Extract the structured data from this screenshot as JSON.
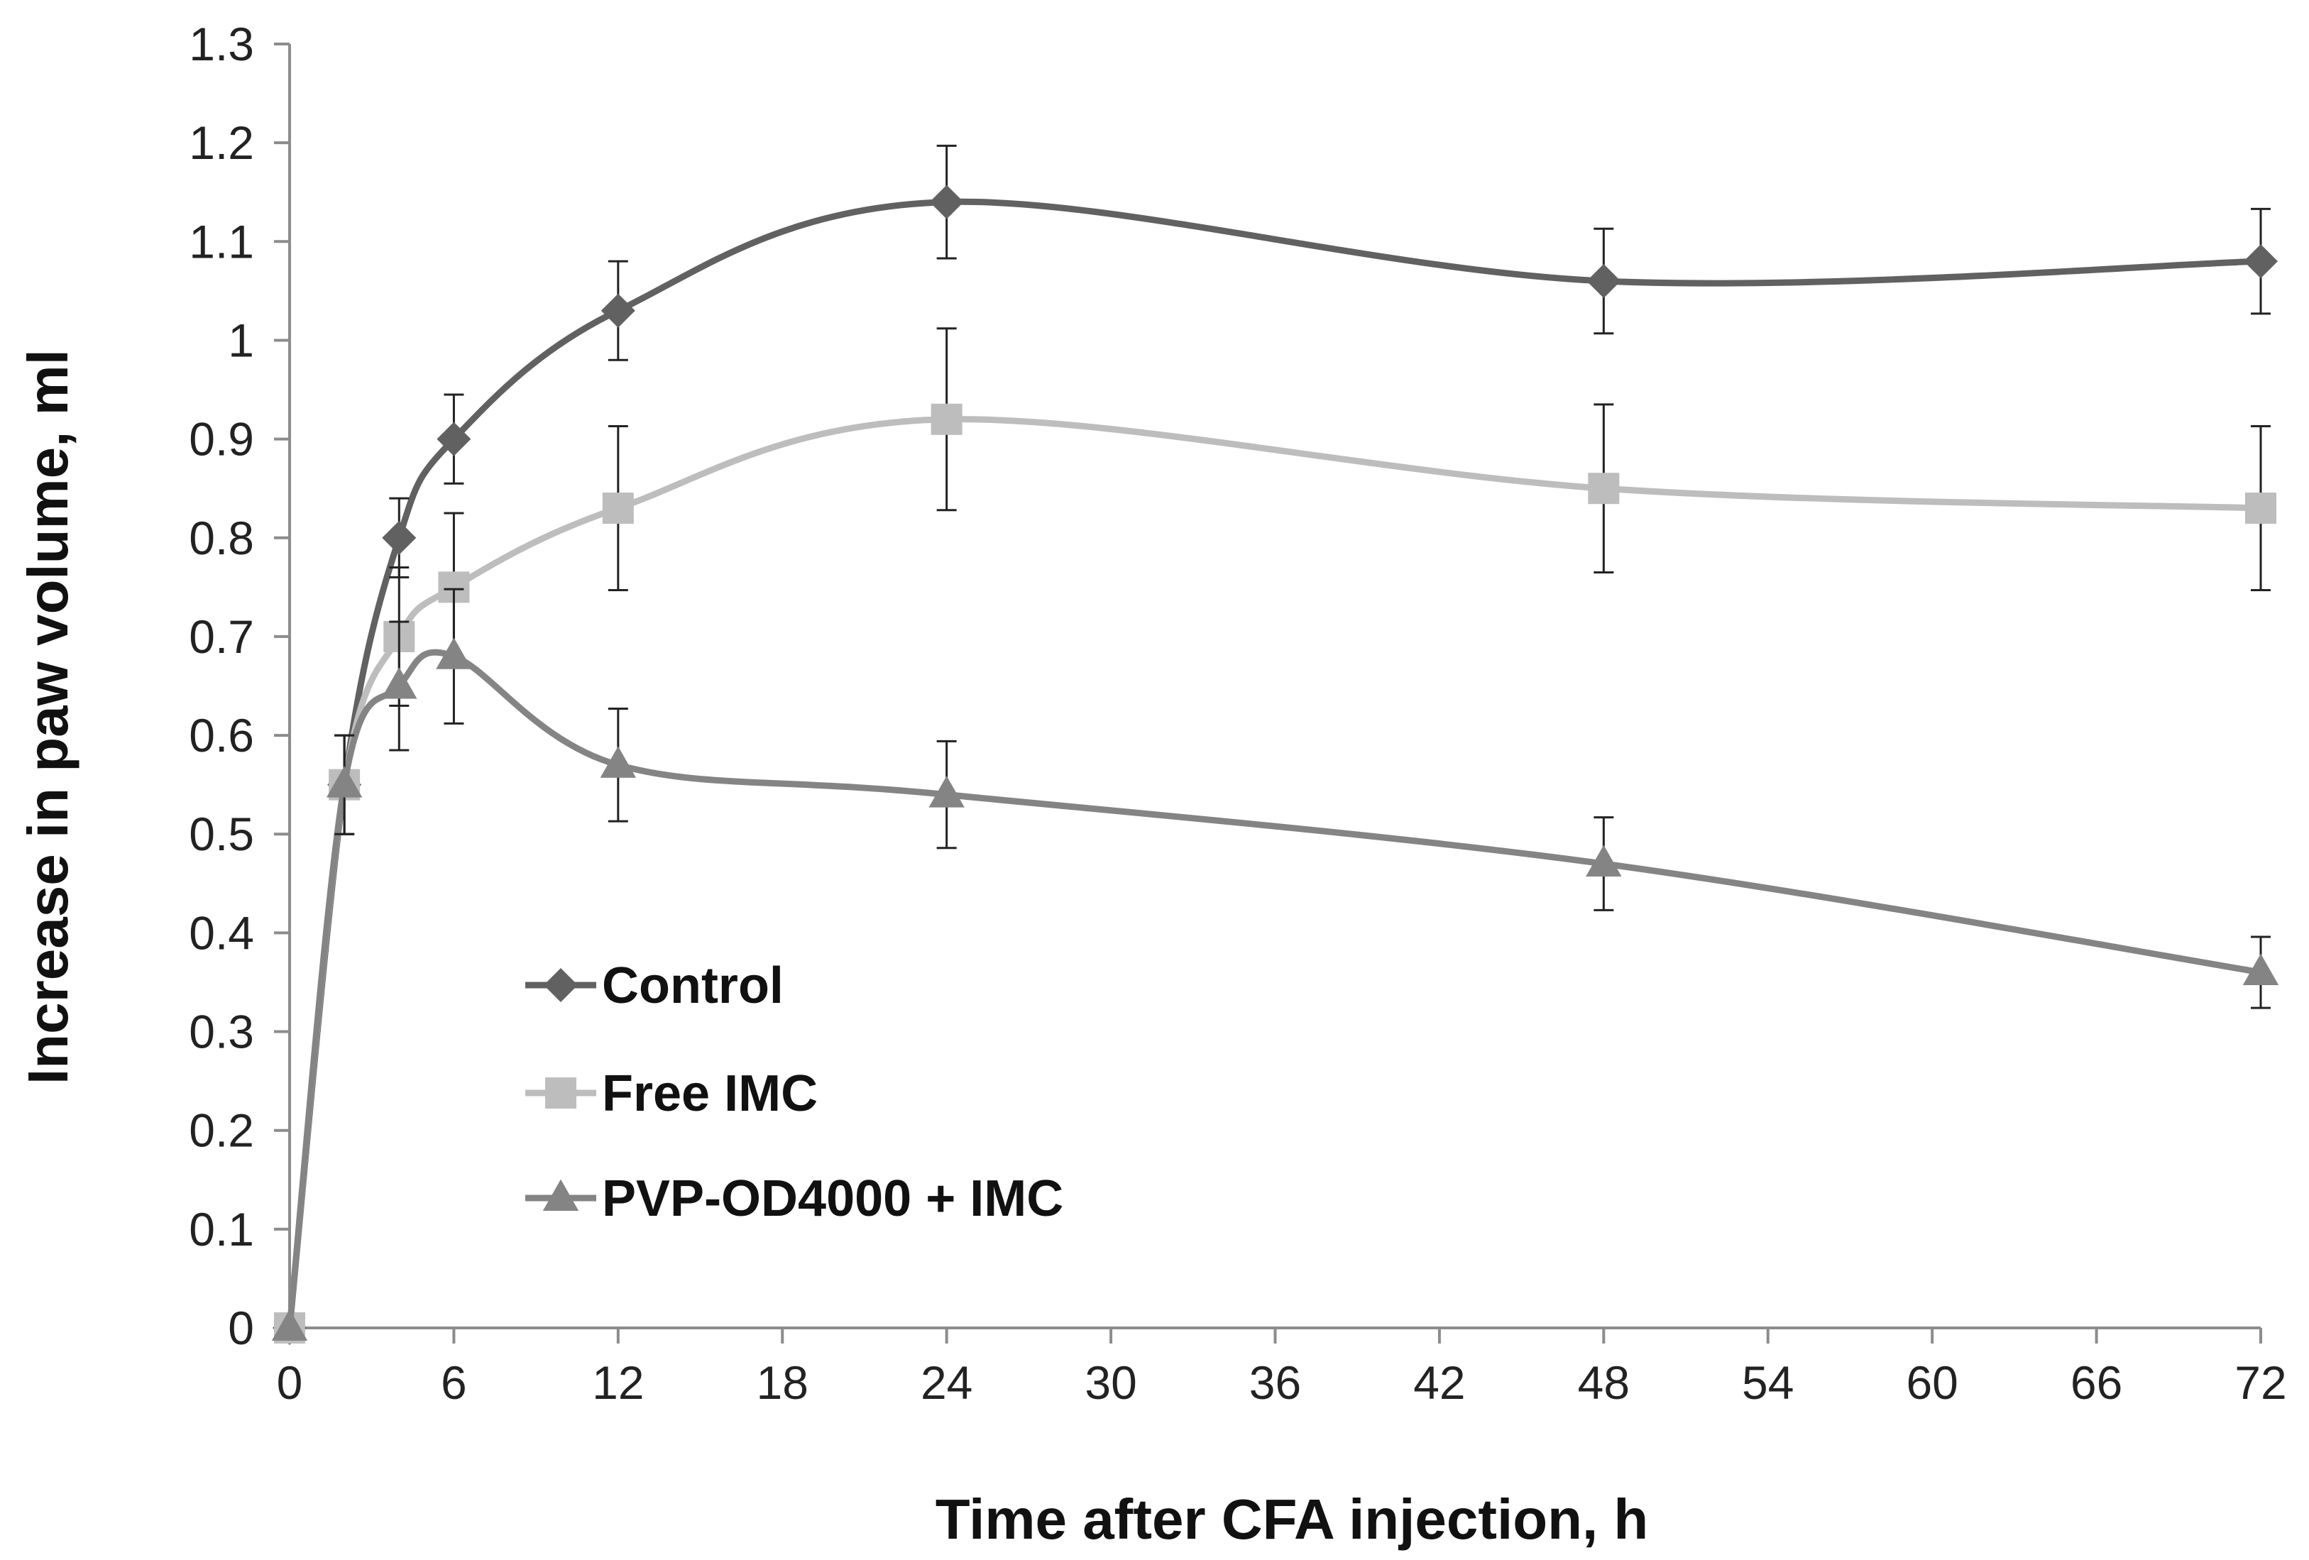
{
  "chart_data": {
    "type": "line",
    "title": "",
    "xlabel": "Time after CFA injection, h",
    "ylabel": "Increase in paw volume, ml",
    "xlim": [
      0,
      72
    ],
    "ylim": [
      0,
      1.3
    ],
    "x_ticks": [
      0,
      6,
      12,
      18,
      24,
      30,
      36,
      42,
      48,
      54,
      60,
      66,
      72
    ],
    "x_tick_labels": [
      "0",
      "6",
      "12",
      "18",
      "24",
      "30",
      "36",
      "42",
      "48",
      "54",
      "60",
      "66",
      "72"
    ],
    "y_ticks": [
      0,
      0.1,
      0.2,
      0.3,
      0.4,
      0.5,
      0.6,
      0.7,
      0.8,
      0.9,
      1,
      1.1,
      1.2,
      1.3
    ],
    "y_tick_labels": [
      "0",
      "0.1",
      "0.2",
      "0.3",
      "0.4",
      "0.5",
      "0.6",
      "0.7",
      "0.8",
      "0.9",
      "1",
      "1.1",
      "1.2",
      "1.3"
    ],
    "grid": false,
    "legend_position": "lower-left",
    "series": [
      {
        "name": "Control",
        "marker": "diamond",
        "color": "#616161",
        "x": [
          0,
          2,
          4,
          6,
          12,
          24,
          48,
          72
        ],
        "y": [
          0,
          0.55,
          0.8,
          0.9,
          1.03,
          1.14,
          1.06,
          1.08
        ],
        "err": [
          0,
          0.05,
          0.04,
          0.045,
          0.05,
          0.057,
          0.053,
          0.053
        ]
      },
      {
        "name": "Free IMC",
        "marker": "square",
        "color": "#bdbdbd",
        "x": [
          0,
          2,
          4,
          6,
          12,
          24,
          48,
          72
        ],
        "y": [
          0,
          0.55,
          0.7,
          0.75,
          0.83,
          0.92,
          0.85,
          0.83
        ],
        "err": [
          0,
          0.05,
          0.07,
          0.075,
          0.083,
          0.092,
          0.085,
          0.083
        ]
      },
      {
        "name": "PVP-OD4000 + IMC",
        "marker": "triangle",
        "color": "#848484",
        "x": [
          0,
          2,
          4,
          6,
          12,
          24,
          48,
          72
        ],
        "y": [
          0,
          0.55,
          0.65,
          0.68,
          0.57,
          0.54,
          0.47,
          0.36
        ],
        "err": [
          0,
          0.05,
          0.065,
          0.068,
          0.057,
          0.054,
          0.047,
          0.036
        ]
      }
    ]
  }
}
